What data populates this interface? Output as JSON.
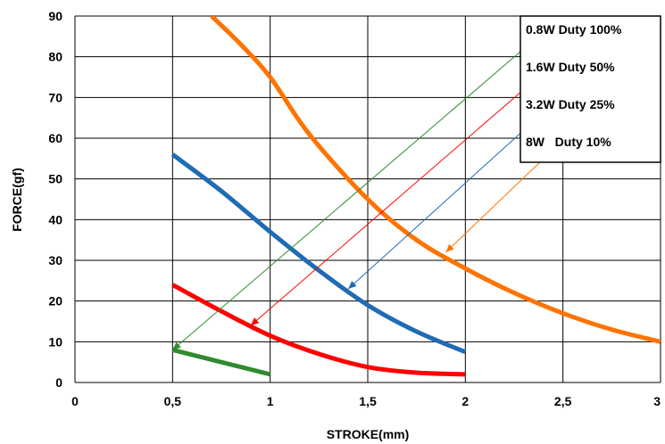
{
  "chart_data": {
    "type": "line",
    "title": "",
    "xlabel": "STROKE(mm)",
    "ylabel": "FORCE(gf)",
    "xlim": [
      0,
      3
    ],
    "ylim": [
      0,
      90
    ],
    "x_ticks": [
      "0",
      "0,5",
      "1",
      "1,5",
      "2",
      "2,5",
      "3"
    ],
    "y_ticks": [
      "0",
      "10",
      "20",
      "30",
      "40",
      "50",
      "60",
      "70",
      "80",
      "90"
    ],
    "grid": true,
    "legend_position": "top-right",
    "series": [
      {
        "name": "0.8W Duty 100%",
        "color": "#2e8b2e",
        "x": [
          0.5,
          1.0
        ],
        "y": [
          8,
          2
        ]
      },
      {
        "name": "1.6W Duty 50%",
        "color": "#ff0000",
        "x": [
          0.5,
          0.75,
          1.0,
          1.25,
          1.5,
          1.75,
          2.0
        ],
        "y": [
          24,
          17.5,
          11.5,
          7,
          3.8,
          2.4,
          2
        ]
      },
      {
        "name": "3.2W Duty 25%",
        "color": "#1f6bb5",
        "x": [
          0.5,
          0.75,
          1.0,
          1.25,
          1.5,
          1.75,
          2.0
        ],
        "y": [
          56,
          47,
          37,
          27.5,
          19,
          12.5,
          7.5
        ]
      },
      {
        "name": "8W   Duty 10%",
        "color": "#ff7300",
        "x": [
          0.7,
          0.85,
          1.0,
          1.2,
          1.5,
          1.75,
          2.0,
          2.25,
          2.5,
          2.75,
          3.0
        ],
        "y": [
          90,
          83,
          75,
          61,
          45,
          35,
          28,
          22,
          17,
          13,
          10
        ]
      }
    ],
    "annotation_arrows": [
      {
        "series": "0.8W Duty 100%",
        "from": [
          2.3,
          82
        ],
        "to": [
          0.5,
          8
        ]
      },
      {
        "series": "1.6W Duty 50%",
        "from": [
          2.3,
          72
        ],
        "to": [
          0.9,
          14
        ]
      },
      {
        "series": "3.2W Duty 25%",
        "from": [
          2.3,
          62
        ],
        "to": [
          1.4,
          23
        ]
      },
      {
        "series": "8W   Duty 10%",
        "from": [
          2.38,
          54
        ],
        "to": [
          1.9,
          32
        ]
      }
    ]
  }
}
